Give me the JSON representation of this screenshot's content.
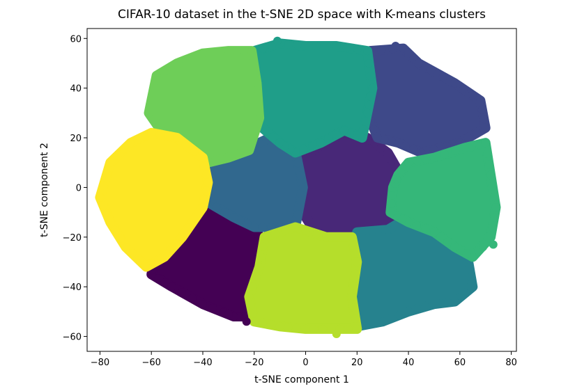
{
  "chart_data": {
    "type": "scatter",
    "title": "CIFAR-10 dataset in the t-SNE 2D space with K-means clusters",
    "xlabel": "t-SNE component 1",
    "ylabel": "t-SNE component 2",
    "xlim": [
      -85,
      82
    ],
    "ylim": [
      -66,
      64
    ],
    "xticks": [
      -80,
      -60,
      -40,
      -20,
      0,
      20,
      40,
      60,
      80
    ],
    "yticks": [
      -60,
      -40,
      -20,
      0,
      20,
      40,
      60
    ],
    "xtick_labels": [
      "−80",
      "−60",
      "−40",
      "−20",
      "0",
      "20",
      "40",
      "60",
      "80"
    ],
    "ytick_labels": [
      "−60",
      "−40",
      "−20",
      "0",
      "20",
      "40",
      "60"
    ],
    "grid": false,
    "legend": "none",
    "colormap": "viridis",
    "clusters": [
      {
        "color": "#440154",
        "region": [
          [
            -59,
            -30
          ],
          [
            -52,
            -20
          ],
          [
            -40,
            -6
          ],
          [
            -30,
            -8
          ],
          [
            -20,
            -16
          ],
          [
            -15,
            -25
          ],
          [
            -18,
            -40
          ],
          [
            -22,
            -52
          ],
          [
            -28,
            -52
          ],
          [
            -40,
            -47
          ],
          [
            -52,
            -40
          ],
          [
            -60,
            -35
          ]
        ]
      },
      {
        "color": "#482878",
        "region": [
          [
            -4,
            10
          ],
          [
            6,
            17
          ],
          [
            15,
            22
          ],
          [
            24,
            20
          ],
          [
            32,
            14
          ],
          [
            37,
            5
          ],
          [
            36,
            -8
          ],
          [
            32,
            -18
          ],
          [
            20,
            -20
          ],
          [
            5,
            -20
          ],
          [
            0,
            -12
          ],
          [
            -2,
            0
          ]
        ]
      },
      {
        "color": "#3e4989",
        "region": [
          [
            25,
            55
          ],
          [
            38,
            56
          ],
          [
            44,
            50
          ],
          [
            58,
            42
          ],
          [
            68,
            35
          ],
          [
            70,
            24
          ],
          [
            60,
            18
          ],
          [
            45,
            14
          ],
          [
            36,
            18
          ],
          [
            28,
            20
          ],
          [
            24,
            30
          ],
          [
            23,
            45
          ]
        ]
      },
      {
        "color": "#31688e",
        "region": [
          [
            -38,
            10
          ],
          [
            -26,
            13
          ],
          [
            -18,
            18
          ],
          [
            -10,
            22
          ],
          [
            -4,
            15
          ],
          [
            -1,
            0
          ],
          [
            -4,
            -16
          ],
          [
            -10,
            -16
          ],
          [
            -20,
            -16
          ],
          [
            -28,
            -12
          ],
          [
            -38,
            -6
          ],
          [
            -40,
            3
          ]
        ]
      },
      {
        "color": "#26828e",
        "region": [
          [
            20,
            -18
          ],
          [
            32,
            -17
          ],
          [
            40,
            -12
          ],
          [
            50,
            -16
          ],
          [
            58,
            -22
          ],
          [
            63,
            -28
          ],
          [
            65,
            -40
          ],
          [
            58,
            -46
          ],
          [
            50,
            -47
          ],
          [
            40,
            -50
          ],
          [
            30,
            -54
          ],
          [
            20,
            -56
          ],
          [
            18,
            -44
          ],
          [
            18,
            -30
          ]
        ]
      },
      {
        "color": "#1f9e89",
        "region": [
          [
            -20,
            55
          ],
          [
            -10,
            58
          ],
          [
            0,
            57
          ],
          [
            12,
            57
          ],
          [
            24,
            55
          ],
          [
            26,
            40
          ],
          [
            24,
            30
          ],
          [
            22,
            20
          ],
          [
            15,
            23
          ],
          [
            6,
            18
          ],
          [
            -4,
            14
          ],
          [
            -10,
            18
          ],
          [
            -18,
            25
          ],
          [
            -20,
            40
          ]
        ]
      },
      {
        "color": "#35b779",
        "region": [
          [
            36,
            5
          ],
          [
            40,
            10
          ],
          [
            50,
            12
          ],
          [
            62,
            16
          ],
          [
            70,
            18
          ],
          [
            72,
            5
          ],
          [
            74,
            -8
          ],
          [
            72,
            -20
          ],
          [
            65,
            -28
          ],
          [
            58,
            -24
          ],
          [
            50,
            -18
          ],
          [
            40,
            -14
          ],
          [
            33,
            -10
          ],
          [
            34,
            0
          ]
        ]
      },
      {
        "color": "#6ece58",
        "region": [
          [
            -58,
            45
          ],
          [
            -50,
            50
          ],
          [
            -40,
            54
          ],
          [
            -30,
            55
          ],
          [
            -21,
            55
          ],
          [
            -19,
            42
          ],
          [
            -18,
            28
          ],
          [
            -22,
            15
          ],
          [
            -30,
            12
          ],
          [
            -38,
            10
          ],
          [
            -46,
            16
          ],
          [
            -55,
            21
          ],
          [
            -61,
            30
          ]
        ]
      },
      {
        "color": "#b5de2b",
        "region": [
          [
            -16,
            -20
          ],
          [
            -4,
            -16
          ],
          [
            8,
            -20
          ],
          [
            18,
            -20
          ],
          [
            20,
            -30
          ],
          [
            18,
            -44
          ],
          [
            20,
            -57
          ],
          [
            10,
            -57
          ],
          [
            0,
            -57
          ],
          [
            -10,
            -56
          ],
          [
            -20,
            -54
          ],
          [
            -22,
            -44
          ],
          [
            -18,
            -32
          ]
        ]
      },
      {
        "color": "#fde725",
        "region": [
          [
            -76,
            10
          ],
          [
            -68,
            18
          ],
          [
            -60,
            22
          ],
          [
            -50,
            20
          ],
          [
            -40,
            12
          ],
          [
            -38,
            2
          ],
          [
            -40,
            -8
          ],
          [
            -48,
            -20
          ],
          [
            -55,
            -28
          ],
          [
            -62,
            -32
          ],
          [
            -70,
            -24
          ],
          [
            -76,
            -14
          ],
          [
            -80,
            -4
          ]
        ]
      }
    ],
    "outliers": [
      {
        "x": 71,
        "y": -20,
        "color": "#35b779"
      },
      {
        "x": 73,
        "y": -23,
        "color": "#35b779"
      },
      {
        "x": 69,
        "y": -24,
        "color": "#35b779"
      },
      {
        "x": 74,
        "y": -8,
        "color": "#35b779"
      },
      {
        "x": -80,
        "y": -4,
        "color": "#fde725"
      },
      {
        "x": 64,
        "y": -40,
        "color": "#26828e"
      },
      {
        "x": -30,
        "y": -51,
        "color": "#440154"
      },
      {
        "x": -23,
        "y": -54,
        "color": "#440154"
      },
      {
        "x": 12,
        "y": -59,
        "color": "#b5de2b"
      },
      {
        "x": -11,
        "y": 59,
        "color": "#1f9e89"
      },
      {
        "x": 35,
        "y": 57,
        "color": "#3e4989"
      }
    ]
  }
}
